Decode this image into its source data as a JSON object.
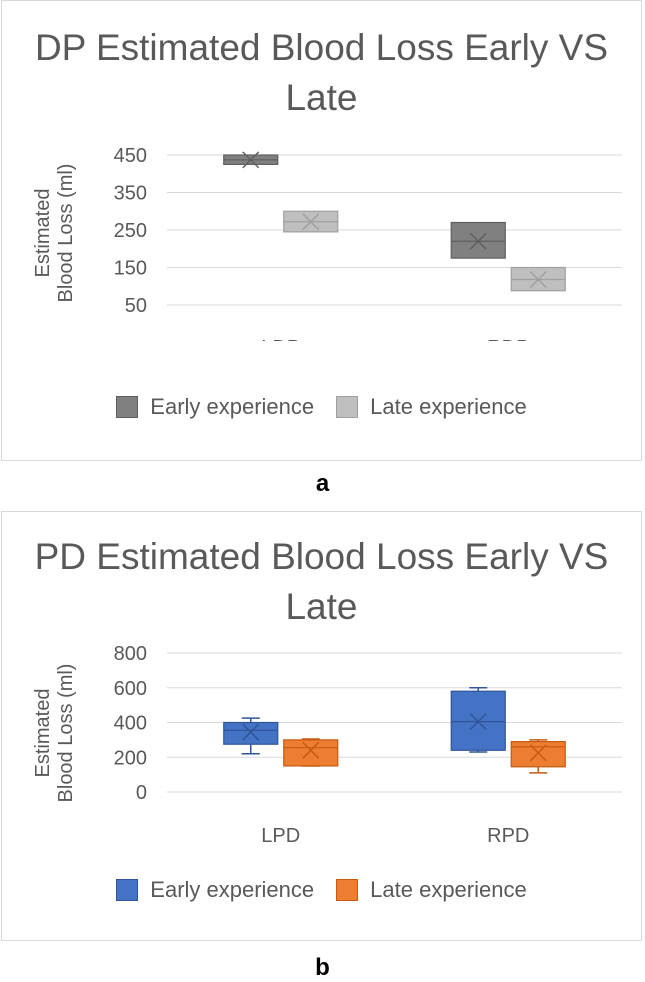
{
  "chart_data": [
    {
      "type": "box",
      "panel": "a",
      "title_lines": [
        "DP Estimated Blood Loss Early VS",
        "Late"
      ],
      "ylabel_lines": [
        "Estimated",
        "Blood Loss (ml)"
      ],
      "xlabel": "",
      "ylim": [
        50,
        450
      ],
      "yticks": [
        450,
        350,
        250,
        150,
        50
      ],
      "categories": [
        "LDP",
        "RDP"
      ],
      "legend": [
        "Early experience",
        "Late experience"
      ],
      "grid": true,
      "series": [
        {
          "name": "Early experience",
          "fill": "#808080",
          "stroke": "#5f5f5f",
          "boxes": [
            {
              "category": "LDP",
              "q1": 425,
              "median": 437,
              "q3": 450,
              "mean": 437
            },
            {
              "category": "RDP",
              "q1": 175,
              "median": 220,
              "q3": 270,
              "mean": 220
            }
          ]
        },
        {
          "name": "Late experience",
          "fill": "#bfbfbf",
          "stroke": "#a0a0a0",
          "boxes": [
            {
              "category": "LDP",
              "q1": 245,
              "median": 272,
              "q3": 300,
              "mean": 272
            },
            {
              "category": "RDP",
              "q1": 88,
              "median": 118,
              "q3": 150,
              "mean": 118
            }
          ]
        }
      ]
    },
    {
      "type": "box",
      "panel": "b",
      "title_lines": [
        "PD Estimated Blood Loss Early VS",
        "Late"
      ],
      "ylabel_lines": [
        "Estimated",
        "Blood Loss (ml)"
      ],
      "xlabel": "",
      "ylim": [
        0,
        800
      ],
      "yticks": [
        800,
        600,
        400,
        200,
        0
      ],
      "categories": [
        "LPD",
        "RPD"
      ],
      "legend": [
        "Early experience",
        "Late experience"
      ],
      "grid": true,
      "series": [
        {
          "name": "Early experience",
          "fill": "#4472c4",
          "stroke": "#2f5597",
          "boxes": [
            {
              "category": "LPD",
              "min": 220,
              "q1": 275,
              "median": 355,
              "q3": 400,
              "max": 425,
              "mean": 345
            },
            {
              "category": "RPD",
              "min": 230,
              "q1": 240,
              "median": 405,
              "q3": 580,
              "max": 600,
              "mean": 405
            }
          ]
        },
        {
          "name": "Late experience",
          "fill": "#ed7d31",
          "stroke": "#c55a11",
          "boxes": [
            {
              "category": "LPD",
              "min": 150,
              "q1": 150,
              "median": 255,
              "q3": 300,
              "max": 305,
              "mean": 240
            },
            {
              "category": "RPD",
              "min": 110,
              "q1": 145,
              "median": 260,
              "q3": 290,
              "max": 300,
              "mean": 225
            }
          ]
        }
      ]
    }
  ],
  "panel_labels": [
    "a",
    "b"
  ]
}
